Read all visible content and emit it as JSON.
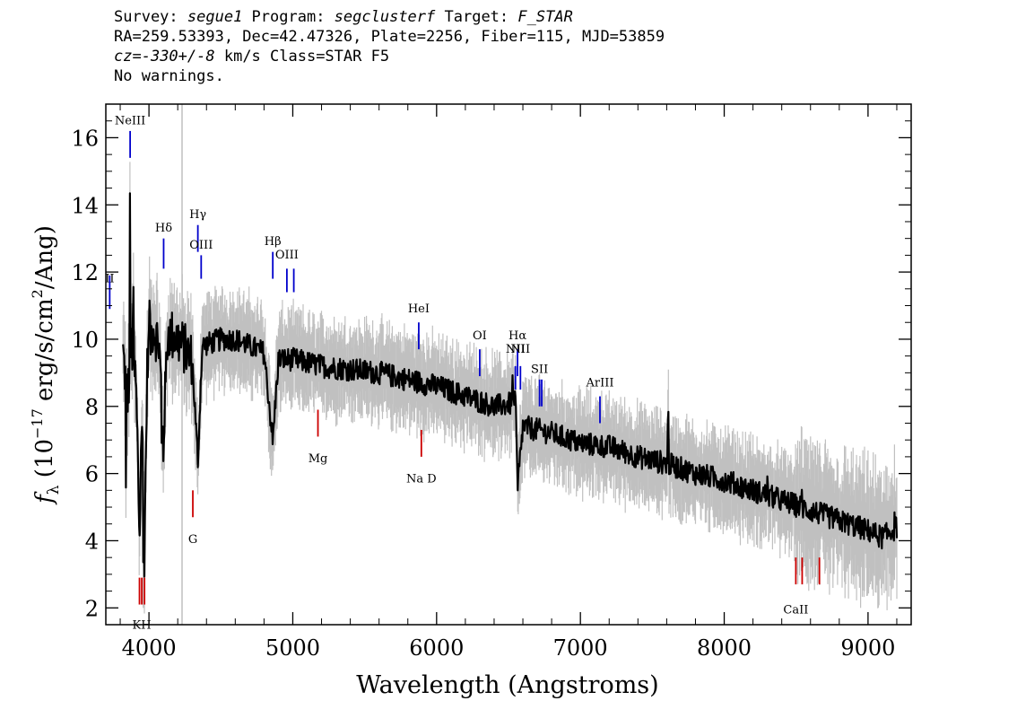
{
  "header": {
    "survey_label": "Survey: ",
    "survey": "segue1",
    "program_label": " Program: ",
    "program": "segclusterf",
    "target_label": " Target: ",
    "target": "F_STAR",
    "line2": "RA=259.53393, Dec=42.47326, Plate=2256, Fiber=115, MJD=53859",
    "cz_label": "cz=",
    "cz_value": "-330+/-8",
    "cz_rest": " km/s Class=STAR F5",
    "line4": "No warnings."
  },
  "colors": {
    "flux": "#000000",
    "error": "#c0c0c0",
    "emission": "#0000cc",
    "absorption": "#cc0000",
    "frame": "#000000"
  },
  "chart_data": {
    "type": "line",
    "xlabel": "Wavelength (Angstroms)",
    "ylabel_tex": "f_λ (10^-17 erg/s/cm^2/Ang)",
    "ylabel_parts": {
      "f": "f",
      "sub": "λ",
      "pre": " (10",
      "exp": "−17",
      "mid": " erg/s/cm",
      "exp2": "2",
      "post": "/Ang)"
    },
    "xlim": [
      3700,
      9300
    ],
    "ylim": [
      1.5,
      17
    ],
    "x_ticks": [
      4000,
      5000,
      6000,
      7000,
      8000,
      9000
    ],
    "x_tick_labels": [
      "4000",
      "5000",
      "6000",
      "7000",
      "8000",
      "9000"
    ],
    "y_ticks": [
      2,
      4,
      6,
      8,
      10,
      12,
      14,
      16
    ],
    "y_tick_labels": [
      "2",
      "4",
      "6",
      "8",
      "10",
      "12",
      "14",
      "16"
    ],
    "vertical_marker_x": 4230,
    "flux_anchors": [
      [
        3820,
        9.6
      ],
      [
        3850,
        8.2
      ],
      [
        3880,
        9.8
      ],
      [
        3910,
        8.6
      ],
      [
        3935,
        4.0
      ],
      [
        3950,
        8.0
      ],
      [
        3968,
        3.7
      ],
      [
        3990,
        9.6
      ],
      [
        4030,
        10.4
      ],
      [
        4070,
        9.8
      ],
      [
        4102,
        7.2
      ],
      [
        4130,
        10.2
      ],
      [
        4200,
        10.0
      ],
      [
        4300,
        9.4
      ],
      [
        4340,
        6.4
      ],
      [
        4370,
        9.8
      ],
      [
        4500,
        10.0
      ],
      [
        4600,
        10.0
      ],
      [
        4700,
        9.8
      ],
      [
        4800,
        9.6
      ],
      [
        4861,
        7.0
      ],
      [
        4900,
        9.4
      ],
      [
        5000,
        9.4
      ],
      [
        5100,
        9.3
      ],
      [
        5200,
        9.2
      ],
      [
        5400,
        9.1
      ],
      [
        5600,
        9.0
      ],
      [
        5800,
        8.8
      ],
      [
        6000,
        8.6
      ],
      [
        6200,
        8.3
      ],
      [
        6400,
        8.0
      ],
      [
        6550,
        8.1
      ],
      [
        6563,
        5.6
      ],
      [
        6600,
        7.4
      ],
      [
        6800,
        7.2
      ],
      [
        7000,
        6.9
      ],
      [
        7200,
        6.8
      ],
      [
        7400,
        6.5
      ],
      [
        7600,
        6.3
      ],
      [
        7800,
        6.0
      ],
      [
        8000,
        5.8
      ],
      [
        8200,
        5.5
      ],
      [
        8400,
        5.2
      ],
      [
        8600,
        4.9
      ],
      [
        8800,
        4.6
      ],
      [
        9000,
        4.3
      ],
      [
        9100,
        4.1
      ],
      [
        9200,
        4.4
      ]
    ],
    "flux_spikes": [
      [
        3840,
        5.2
      ],
      [
        3868,
        14.7
      ],
      [
        3890,
        10.8
      ],
      [
        3920,
        7.0
      ],
      [
        3960,
        3.3
      ],
      [
        4004,
        11.5
      ],
      [
        4090,
        6.8
      ],
      [
        4100,
        6.6
      ],
      [
        4340,
        6.0
      ],
      [
        4861,
        6.8
      ],
      [
        6563,
        5.3
      ],
      [
        6530,
        8.7
      ],
      [
        7610,
        7.6
      ],
      [
        8300,
        6.0
      ],
      [
        8540,
        5.5
      ],
      [
        9185,
        5.0
      ]
    ],
    "emission_lines": [
      {
        "label": "NeIII",
        "x": 3869,
        "y_top": 16.2,
        "y_bot": 15.4,
        "label_y": 16.4
      },
      {
        "label": "II",
        "x": 3727,
        "y_top": 11.9,
        "y_bot": 10.9,
        "label_y": 11.7
      },
      {
        "label": "Hδ",
        "x": 4102,
        "y_top": 13.0,
        "y_bot": 12.1,
        "label_y": 13.2
      },
      {
        "label": "Hγ",
        "x": 4340,
        "y_top": 13.4,
        "y_bot": 12.6,
        "label_y": 13.6
      },
      {
        "label": "OIII",
        "x": 4363,
        "y_top": 12.5,
        "y_bot": 11.8,
        "label_y": 12.7
      },
      {
        "label": "Hβ",
        "x": 4861,
        "y_top": 12.6,
        "y_bot": 11.8,
        "label_y": 12.8
      },
      {
        "label": "OIII",
        "x": 4959,
        "y_top": 12.1,
        "y_bot": 11.4,
        "label_y": 12.4
      },
      {
        "label": "",
        "x": 5007,
        "y_top": 12.1,
        "y_bot": 11.4,
        "label_y": 12.4
      },
      {
        "label": "HeI",
        "x": 5876,
        "y_top": 10.5,
        "y_bot": 9.7,
        "label_y": 10.8
      },
      {
        "label": "OI",
        "x": 6300,
        "y_top": 9.7,
        "y_bot": 8.9,
        "label_y": 10.0
      },
      {
        "label": "NII",
        "x": 6548,
        "y_top": 9.2,
        "y_bot": 8.5,
        "label_y": 9.6
      },
      {
        "label": "Hα",
        "x": 6563,
        "y_top": 9.7,
        "y_bot": 8.9,
        "label_y": 10.0
      },
      {
        "label": "NII",
        "x": 6583,
        "y_top": 9.2,
        "y_bot": 8.5,
        "label_y": 9.6
      },
      {
        "label": "SII",
        "x": 6716,
        "y_top": 8.8,
        "y_bot": 8.0,
        "label_y": 9.0
      },
      {
        "label": "",
        "x": 6731,
        "y_top": 8.8,
        "y_bot": 8.0,
        "label_y": 9.0
      },
      {
        "label": "ArIII",
        "x": 7136,
        "y_top": 8.3,
        "y_bot": 7.5,
        "label_y": 8.6
      }
    ],
    "absorption_lines": [
      {
        "label": "KH",
        "x": 3950,
        "y_top": 2.9,
        "y_bot": 2.1,
        "label_y": 1.65
      },
      {
        "label": "",
        "x": 3934,
        "y_top": 2.9,
        "y_bot": 2.1,
        "label_y": 1.65
      },
      {
        "label": "",
        "x": 3969,
        "y_top": 2.9,
        "y_bot": 2.1,
        "label_y": 1.65
      },
      {
        "label": "G",
        "x": 4305,
        "y_top": 5.5,
        "y_bot": 4.7,
        "label_y": 4.2
      },
      {
        "label": "Mg",
        "x": 5175,
        "y_top": 7.9,
        "y_bot": 7.1,
        "label_y": 6.6
      },
      {
        "label": "Na  D",
        "x": 5894,
        "y_top": 7.3,
        "y_bot": 6.5,
        "label_y": 6.0
      },
      {
        "label": "CaII",
        "x": 8498,
        "y_top": 3.5,
        "y_bot": 2.7,
        "label_y": 2.1
      },
      {
        "label": "",
        "x": 8542,
        "y_top": 3.5,
        "y_bot": 2.7,
        "label_y": 2.1
      },
      {
        "label": "",
        "x": 8662,
        "y_top": 3.5,
        "y_bot": 2.7,
        "label_y": 2.1
      }
    ]
  }
}
